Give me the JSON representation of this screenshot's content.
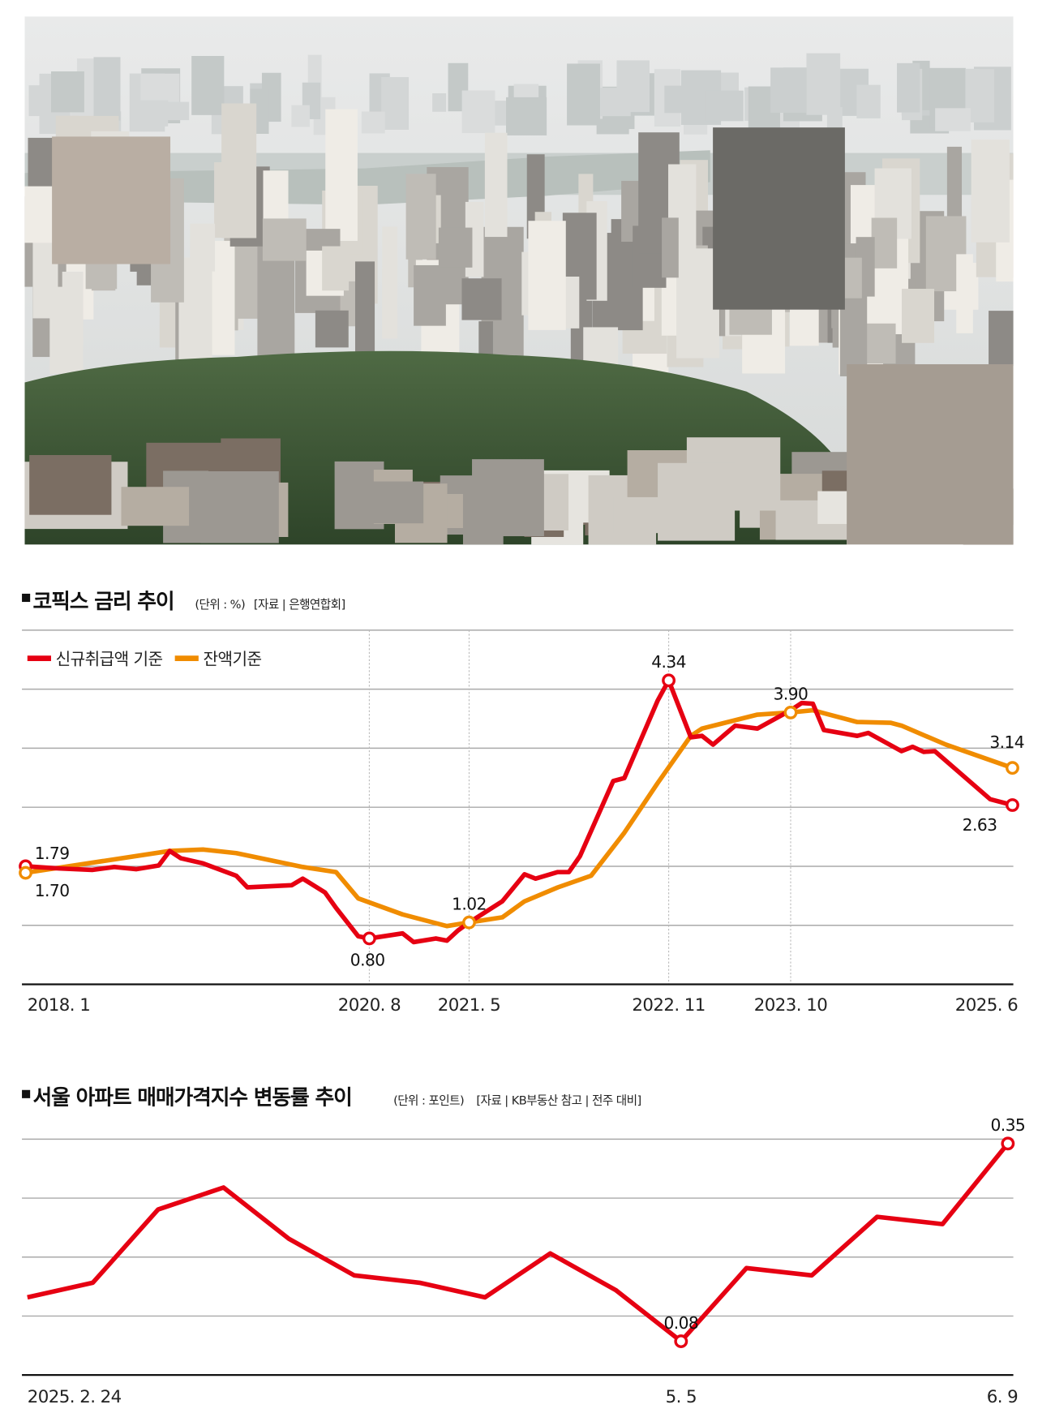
{
  "colors": {
    "red": "#e60012",
    "orange": "#f08c00",
    "grid": "#aaaaaa",
    "axis": "#111111"
  },
  "photo": {
    "subject": "hazy Seoul cityscape with apartment blocks, river and green park"
  },
  "chart_data": [
    {
      "type": "line",
      "title": "코픽스 금리 추이",
      "unit_note": "(단위 : %)",
      "source_note": "[자료 | 은행연합회]",
      "xlabel": "",
      "ylabel": "",
      "ylim": [
        0.17,
        5.03
      ],
      "grid": true,
      "legend_position": "top-left",
      "x_ticks": [
        "2018. 1",
        "2020. 8",
        "2021. 5",
        "2022. 11",
        "2023. 10",
        "2025. 6"
      ],
      "x_tick_dates": [
        "2018.1",
        "2020.8",
        "2021.5",
        "2022.11",
        "2023.10",
        "2025.6"
      ],
      "series": [
        {
          "name": "신규취급액 기준",
          "color": "#e60012",
          "points": [
            [
              "2018.1",
              1.79
            ],
            [
              "2018.4",
              1.76
            ],
            [
              "2018.7",
              1.74
            ],
            [
              "2018.9",
              1.78
            ],
            [
              "2018.11",
              1.75
            ],
            [
              "2019.1",
              1.8
            ],
            [
              "2019.2",
              2.0
            ],
            [
              "2019.3",
              1.9
            ],
            [
              "2019.5",
              1.83
            ],
            [
              "2019.8",
              1.66
            ],
            [
              "2019.9",
              1.5
            ],
            [
              "2020.1",
              1.53
            ],
            [
              "2020.2",
              1.62
            ],
            [
              "2020.4",
              1.43
            ],
            [
              "2020.5",
              1.22
            ],
            [
              "2020.7",
              0.83
            ],
            [
              "2020.8",
              0.8
            ],
            [
              "2020.11",
              0.87
            ],
            [
              "2020.12",
              0.75
            ],
            [
              "2021.2",
              0.8
            ],
            [
              "2021.3",
              0.77
            ],
            [
              "2021.4",
              0.91
            ],
            [
              "2021.5",
              1.02
            ],
            [
              "2021.8",
              1.31
            ],
            [
              "2021.10",
              1.68
            ],
            [
              "2021.11",
              1.62
            ],
            [
              "2022.1",
              1.71
            ],
            [
              "2022.2",
              1.71
            ],
            [
              "2022.3",
              1.93
            ],
            [
              "2022.6",
              2.96
            ],
            [
              "2022.7",
              3.0
            ],
            [
              "2022.10",
              4.06
            ],
            [
              "2022.11",
              4.34
            ],
            [
              "2023.1",
              3.56
            ],
            [
              "2023.2",
              3.58
            ],
            [
              "2023.3",
              3.46
            ],
            [
              "2023.5",
              3.72
            ],
            [
              "2023.7",
              3.68
            ],
            [
              "2023.10",
              3.93
            ],
            [
              "2023.11",
              4.03
            ],
            [
              "2023.12",
              4.02
            ],
            [
              "2024.1",
              3.66
            ],
            [
              "2024.4",
              3.58
            ],
            [
              "2024.5",
              3.62
            ],
            [
              "2024.8",
              3.37
            ],
            [
              "2024.9",
              3.43
            ],
            [
              "2024.10",
              3.36
            ],
            [
              "2024.11",
              3.37
            ],
            [
              "2025.4",
              2.71
            ],
            [
              "2025.6",
              2.63
            ]
          ]
        },
        {
          "name": "잔액기준",
          "color": "#f08c00",
          "points": [
            [
              "2018.1",
              1.7
            ],
            [
              "2019.2",
              2.0
            ],
            [
              "2019.5",
              2.02
            ],
            [
              "2019.8",
              1.97
            ],
            [
              "2020.2",
              1.78
            ],
            [
              "2020.5",
              1.71
            ],
            [
              "2020.7",
              1.35
            ],
            [
              "2020.11",
              1.13
            ],
            [
              "2021.3",
              0.97
            ],
            [
              "2021.5",
              1.02
            ],
            [
              "2021.8",
              1.09
            ],
            [
              "2021.10",
              1.31
            ],
            [
              "2022.1",
              1.5
            ],
            [
              "2022.4",
              1.66
            ],
            [
              "2022.7",
              2.25
            ],
            [
              "2022.10",
              2.93
            ],
            [
              "2023.1",
              3.58
            ],
            [
              "2023.2",
              3.68
            ],
            [
              "2023.7",
              3.87
            ],
            [
              "2023.10",
              3.9
            ],
            [
              "2023.12",
              3.93
            ],
            [
              "2024.4",
              3.77
            ],
            [
              "2024.7",
              3.76
            ],
            [
              "2024.8",
              3.72
            ],
            [
              "2024.12",
              3.46
            ],
            [
              "2025.6",
              3.14
            ]
          ]
        }
      ],
      "annotations": [
        {
          "series": 0,
          "date": "2018.1",
          "text": "1.79"
        },
        {
          "series": 1,
          "date": "2018.1",
          "text": "1.70"
        },
        {
          "series": 0,
          "date": "2020.8",
          "text": "0.80"
        },
        {
          "series": 1,
          "date": "2021.5",
          "text": "1.02"
        },
        {
          "series": 0,
          "date": "2022.11",
          "text": "4.34"
        },
        {
          "series": 1,
          "date": "2023.10",
          "text": "3.90"
        },
        {
          "series": 1,
          "date": "2025.6",
          "text": "3.14"
        },
        {
          "series": 0,
          "date": "2025.6",
          "text": "2.63"
        }
      ]
    },
    {
      "type": "line",
      "title": "서울 아파트 매매가격지수 변동률 추이",
      "unit_note": "(단위 : 포인트)",
      "source_note": "[자료 | KB부동산 참고 | 전주 대비]",
      "xlabel": "",
      "ylabel": "",
      "ylim": [
        0.034,
        0.356
      ],
      "grid": true,
      "x": [
        "2025.2.24",
        "3.3",
        "3.10",
        "3.17",
        "3.24",
        "3.31",
        "4.7",
        "4.14",
        "4.21",
        "4.28",
        "5.5",
        "5.12",
        "5.19",
        "5.26",
        "6.2",
        "6.9"
      ],
      "x_ticks": [
        {
          "index": 0,
          "label": "2025. 2. 24"
        },
        {
          "index": 10,
          "label": "5. 5"
        },
        {
          "index": 15,
          "label": "6. 9"
        }
      ],
      "series": [
        {
          "color": "#e60012",
          "values": [
            0.14,
            0.16,
            0.26,
            0.29,
            0.22,
            0.17,
            0.16,
            0.14,
            0.2,
            0.15,
            0.08,
            0.18,
            0.17,
            0.25,
            0.24,
            0.35
          ]
        }
      ],
      "annotations": [
        {
          "index": 10,
          "text": "0.08"
        },
        {
          "index": 15,
          "text": "0.35"
        }
      ]
    }
  ]
}
